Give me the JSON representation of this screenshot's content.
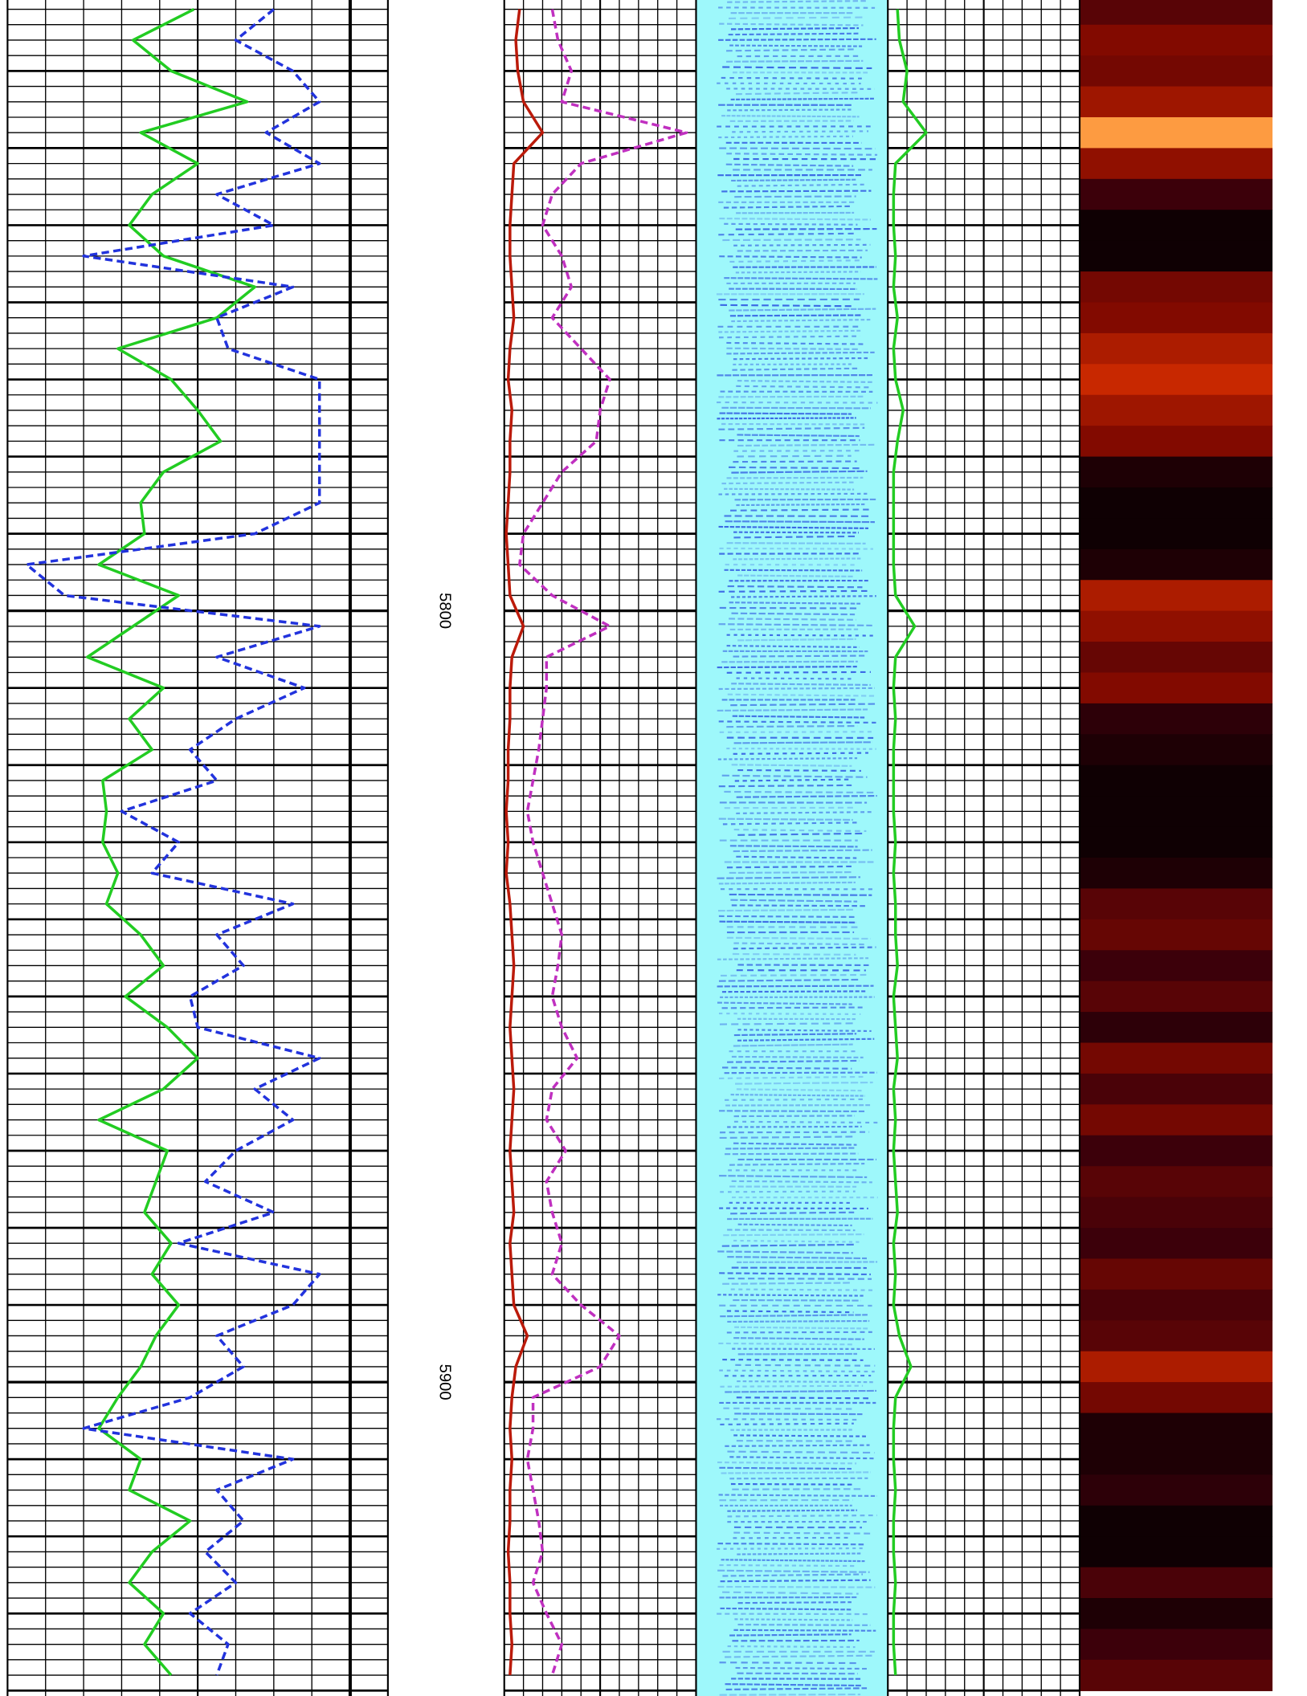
{
  "chart_data": {
    "type": "well-log",
    "ylim": [
      5720.8,
      5940.7
    ],
    "yticks": [
      5800,
      5900
    ],
    "grid": true,
    "depths": [
      5722,
      5726,
      5730,
      5734,
      5738,
      5742,
      5746,
      5750,
      5754,
      5758,
      5762,
      5766,
      5770,
      5774,
      5778,
      5782,
      5786,
      5790,
      5794,
      5798,
      5802,
      5806,
      5810,
      5814,
      5818,
      5822,
      5826,
      5830,
      5834,
      5838,
      5842,
      5846,
      5850,
      5854,
      5858,
      5862,
      5866,
      5870,
      5874,
      5878,
      5882,
      5886,
      5890,
      5894,
      5898,
      5902,
      5906,
      5910,
      5914,
      5918,
      5922,
      5926,
      5930,
      5934,
      5938
    ],
    "tracks": [
      {
        "kind": "curves",
        "xlim": [
          0,
          100
        ],
        "series": [
          {
            "color": "#22cc22",
            "dash": false,
            "values": [
              49,
              33,
              43,
              63,
              35,
              50,
              38,
              32,
              41,
              65,
              55,
              29,
              43,
              50,
              56,
              41,
              35,
              36,
              24,
              45,
              33,
              21,
              41,
              32,
              38,
              25,
              26,
              25,
              29,
              26,
              35,
              41,
              31,
              42,
              50,
              41,
              24,
              42,
              39,
              36,
              43,
              38,
              45,
              39,
              35,
              29,
              24,
              35,
              32,
              48,
              38,
              32,
              41,
              36,
              43
            ]
          },
          {
            "color": "#2233dd",
            "dash": true,
            "values": [
              70,
              60,
              75,
              82,
              68,
              82,
              55,
              70,
              20,
              75,
              55,
              58,
              82,
              82,
              82,
              82,
              82,
              65,
              5,
              15,
              82,
              55,
              78,
              60,
              48,
              55,
              30,
              45,
              38,
              75,
              55,
              62,
              48,
              50,
              82,
              65,
              75,
              60,
              52,
              70,
              45,
              82,
              75,
              55,
              62,
              48,
              20,
              75,
              55,
              62,
              52,
              60,
              48,
              58,
              55
            ]
          }
        ]
      },
      {
        "kind": "curves",
        "xlim": [
          0,
          100
        ],
        "series": [
          {
            "color": "#bb1a0a",
            "dash": false,
            "values": [
              8,
              6,
              7,
              10,
              20,
              5,
              4,
              3,
              3,
              4,
              5,
              3,
              2,
              4,
              3,
              3,
              2,
              1,
              2,
              3,
              10,
              4,
              3,
              3,
              2,
              2,
              1,
              2,
              1,
              3,
              4,
              5,
              4,
              3,
              4,
              5,
              4,
              3,
              4,
              5,
              3,
              4,
              5,
              12,
              6,
              4,
              3,
              4,
              3,
              3,
              2,
              3,
              3,
              4,
              3
            ]
          },
          {
            "color": "#c030c0",
            "dash": true,
            "values": [
              25,
              28,
              35,
              30,
              95,
              40,
              25,
              20,
              30,
              35,
              25,
              40,
              55,
              50,
              48,
              30,
              20,
              10,
              8,
              25,
              55,
              22,
              22,
              20,
              18,
              15,
              12,
              15,
              20,
              25,
              30,
              28,
              25,
              30,
              38,
              25,
              22,
              32,
              22,
              25,
              30,
              25,
              40,
              60,
              50,
              15,
              15,
              12,
              15,
              18,
              20,
              15,
              22,
              30,
              25
            ]
          }
        ]
      },
      {
        "kind": "curves",
        "xlim": [
          0,
          100
        ],
        "series": [
          {
            "color": "#22cc22",
            "dash": false,
            "values": [
              5,
              6,
              10,
              8,
              20,
              4,
              3,
              3,
              4,
              3,
              5,
              3,
              4,
              8,
              5,
              3,
              3,
              3,
              3,
              4,
              14,
              4,
              3,
              4,
              3,
              3,
              3,
              4,
              3,
              4,
              4,
              5,
              3,
              4,
              5,
              3,
              4,
              3,
              4,
              5,
              3,
              4,
              3,
              6,
              12,
              4,
              3,
              3,
              4,
              3,
              3,
              4,
              3,
              3,
              4
            ]
          }
        ]
      },
      {
        "kind": "heatmap",
        "xlim": [
          0,
          100
        ],
        "values": [
          30,
          45,
          40,
          55,
          95,
          50,
          20,
          5,
          5,
          40,
          45,
          60,
          70,
          55,
          45,
          10,
          5,
          5,
          10,
          60,
          50,
          35,
          45,
          15,
          10,
          5,
          5,
          5,
          10,
          30,
          35,
          20,
          30,
          15,
          40,
          25,
          40,
          20,
          30,
          25,
          20,
          35,
          25,
          30,
          60,
          40,
          10,
          10,
          15,
          5,
          5,
          25,
          10,
          20,
          30
        ]
      }
    ]
  }
}
